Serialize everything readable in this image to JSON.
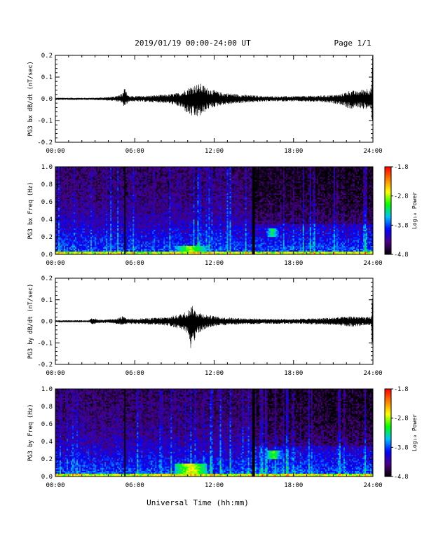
{
  "header": {
    "title": "2019/01/19  00:00-24:00 UT",
    "page": "Page 1/1"
  },
  "footer": {
    "xlabel": "Universal Time (hh:mm)"
  },
  "colorbar": {
    "label": "Log₁₀ Power",
    "ticks": [
      "-1.8",
      "-2.8",
      "-3.8",
      "-4.8"
    ],
    "tick_values": [
      -1.8,
      -2.8,
      -3.8,
      -4.8
    ],
    "range": [
      -4.8,
      -1.8
    ],
    "colors": [
      "#000000",
      "#4b0082",
      "#0000ff",
      "#00bfff",
      "#00ff00",
      "#ffff00",
      "#ff7f00",
      "#ff0000"
    ]
  },
  "chart_data": [
    {
      "id": "bx_wave",
      "type": "line",
      "ylabel": "PG3 bx dB/dt (nT/sec)",
      "xlim": [
        0,
        24
      ],
      "ylim": [
        -0.2,
        0.2
      ],
      "xticks": [
        "00:00",
        "06:00",
        "12:00",
        "18:00",
        "24:00"
      ],
      "xtick_values": [
        0,
        6,
        12,
        18,
        24
      ],
      "yticks": [
        "0.2",
        "0.1",
        "0.0",
        "-0.1",
        "-0.2"
      ],
      "ytick_values": [
        0.2,
        0.1,
        0.0,
        -0.1,
        -0.2
      ],
      "color": "#000000",
      "envelope": {
        "x": [
          0,
          3.0,
          4.5,
          5.1,
          5.2,
          5.3,
          5.6,
          7.0,
          8.5,
          9.5,
          10.0,
          10.5,
          11.0,
          11.5,
          12.5,
          14.0,
          16.0,
          18.0,
          20.0,
          21.5,
          22.3,
          22.8,
          23.5,
          23.9,
          23.95,
          24.0
        ],
        "upper": [
          0.005,
          0.005,
          0.01,
          0.03,
          0.08,
          0.04,
          0.012,
          0.015,
          0.02,
          0.03,
          0.05,
          0.065,
          0.07,
          0.05,
          0.03,
          0.02,
          0.012,
          0.012,
          0.015,
          0.02,
          0.04,
          0.035,
          0.05,
          0.05,
          0.2,
          0.2
        ],
        "lower": [
          -0.005,
          -0.005,
          -0.01,
          -0.02,
          -0.05,
          -0.03,
          -0.012,
          -0.015,
          -0.02,
          -0.04,
          -0.07,
          -0.09,
          -0.08,
          -0.05,
          -0.03,
          -0.02,
          -0.012,
          -0.012,
          -0.015,
          -0.025,
          -0.05,
          -0.04,
          -0.05,
          -0.05,
          -0.12,
          -0.12
        ]
      }
    },
    {
      "id": "bx_spec",
      "type": "heatmap",
      "ylabel": "PG3 bx Freq (Hz)",
      "xlim": [
        0,
        24
      ],
      "ylim": [
        0,
        1.0
      ],
      "xticks": [
        "00:00",
        "06:00",
        "12:00",
        "18:00",
        "24:00"
      ],
      "xtick_values": [
        0,
        6,
        12,
        18,
        24
      ],
      "yticks": [
        "1.0",
        "0.8",
        "0.6",
        "0.4",
        "0.2",
        "0.0"
      ],
      "ytick_values": [
        1.0,
        0.8,
        0.6,
        0.4,
        0.2,
        0.0
      ],
      "zlim": [
        -4.8,
        -1.8
      ],
      "data_gaps_hours": [
        5.25,
        14.95
      ],
      "features": [
        {
          "name": "low-frequency enhancement",
          "t": [
            9.0,
            11.5
          ],
          "f": [
            0.0,
            0.1
          ],
          "level": -2.8
        },
        {
          "name": "band 0.2-0.3 Hz",
          "t": [
            15.8,
            17.0
          ],
          "f": [
            0.2,
            0.3
          ],
          "level": -3.2
        }
      ]
    },
    {
      "id": "by_wave",
      "type": "line",
      "ylabel": "PG3 by dB/dt (nT/sec)",
      "xlim": [
        0,
        24
      ],
      "ylim": [
        -0.2,
        0.2
      ],
      "xticks": [
        "00:00",
        "06:00",
        "12:00",
        "18:00",
        "24:00"
      ],
      "xtick_values": [
        0,
        6,
        12,
        18,
        24
      ],
      "yticks": [
        "0.2",
        "0.1",
        "0.0",
        "-0.1",
        "-0.2"
      ],
      "ytick_values": [
        0.2,
        0.1,
        0.0,
        -0.1,
        -0.2
      ],
      "color": "#000000",
      "envelope": {
        "x": [
          0,
          2.5,
          2.9,
          3.1,
          3.5,
          4.5,
          5.1,
          5.3,
          5.5,
          7.0,
          8.5,
          9.5,
          10.0,
          10.3,
          10.6,
          11.0,
          11.5,
          12.5,
          14.0,
          16.0,
          18.0,
          20.0,
          21.5,
          22.5,
          23.5,
          23.9,
          23.95,
          24.0
        ],
        "upper": [
          0.005,
          0.005,
          0.02,
          0.01,
          0.008,
          0.01,
          0.025,
          0.015,
          0.012,
          0.015,
          0.02,
          0.035,
          0.05,
          0.075,
          0.05,
          0.04,
          0.03,
          0.02,
          0.015,
          0.012,
          0.012,
          0.015,
          0.02,
          0.025,
          0.02,
          0.02,
          0.13,
          0.13
        ],
        "lower": [
          -0.005,
          -0.005,
          -0.015,
          -0.01,
          -0.008,
          -0.01,
          -0.02,
          -0.015,
          -0.012,
          -0.015,
          -0.02,
          -0.04,
          -0.07,
          -0.15,
          -0.07,
          -0.05,
          -0.03,
          -0.02,
          -0.015,
          -0.012,
          -0.012,
          -0.015,
          -0.02,
          -0.025,
          -0.02,
          -0.02,
          -0.18,
          -0.18
        ]
      }
    },
    {
      "id": "by_spec",
      "type": "heatmap",
      "ylabel": "PG3 by Freq (Hz)",
      "xlim": [
        0,
        24
      ],
      "ylim": [
        0,
        1.0
      ],
      "xticks": [
        "00:00",
        "06:00",
        "12:00",
        "18:00",
        "24:00"
      ],
      "xtick_values": [
        0,
        6,
        12,
        18,
        24
      ],
      "yticks": [
        "1.0",
        "0.8",
        "0.6",
        "0.4",
        "0.2",
        "0.0"
      ],
      "ytick_values": [
        1.0,
        0.8,
        0.6,
        0.4,
        0.2,
        0.0
      ],
      "zlim": [
        -4.8,
        -1.8
      ],
      "data_gaps_hours": [
        5.25,
        14.95
      ],
      "features": [
        {
          "name": "low-frequency enhancement",
          "t": [
            9.0,
            11.5
          ],
          "f": [
            0.0,
            0.15
          ],
          "level": -2.6
        },
        {
          "name": "band 0.2-0.3 Hz",
          "t": [
            15.8,
            17.2
          ],
          "f": [
            0.2,
            0.3
          ],
          "level": -3.0
        }
      ]
    }
  ]
}
